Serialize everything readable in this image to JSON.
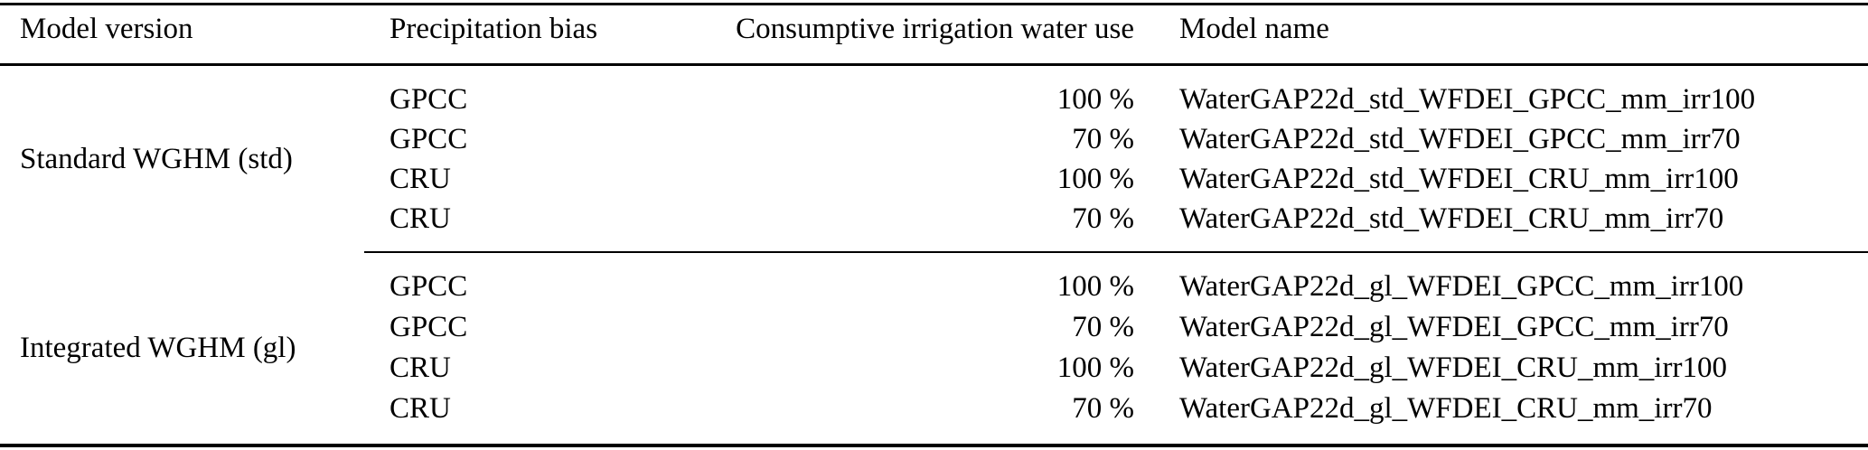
{
  "colors": {
    "text": "#000000",
    "background": "#ffffff",
    "rule": "#000000"
  },
  "table": {
    "headers": [
      "Model version",
      "Precipitation bias",
      "Consumptive irrigation water use",
      "Model name"
    ],
    "groups": [
      {
        "model_version": "Standard WGHM (std)",
        "rows": [
          {
            "precipitation_bias": "GPCC",
            "irrigation_water_use": "100 %",
            "model_name": "WaterGAP22d_std_WFDEI_GPCC_mm_irr100"
          },
          {
            "precipitation_bias": "GPCC",
            "irrigation_water_use": "70 %",
            "model_name": "WaterGAP22d_std_WFDEI_GPCC_mm_irr70"
          },
          {
            "precipitation_bias": "CRU",
            "irrigation_water_use": "100 %",
            "model_name": "WaterGAP22d_std_WFDEI_CRU_mm_irr100"
          },
          {
            "precipitation_bias": "CRU",
            "irrigation_water_use": "70 %",
            "model_name": "WaterGAP22d_std_WFDEI_CRU_mm_irr70"
          }
        ]
      },
      {
        "model_version": "Integrated WGHM (gl)",
        "rows": [
          {
            "precipitation_bias": "GPCC",
            "irrigation_water_use": "100 %",
            "model_name": "WaterGAP22d_gl_WFDEI_GPCC_mm_irr100"
          },
          {
            "precipitation_bias": "GPCC",
            "irrigation_water_use": "70 %",
            "model_name": "WaterGAP22d_gl_WFDEI_GPCC_mm_irr70"
          },
          {
            "precipitation_bias": "CRU",
            "irrigation_water_use": "100 %",
            "model_name": "WaterGAP22d_gl_WFDEI_CRU_mm_irr100"
          },
          {
            "precipitation_bias": "CRU",
            "irrigation_water_use": "70 %",
            "model_name": "WaterGAP22d_gl_WFDEI_CRU_mm_irr70"
          }
        ]
      }
    ]
  }
}
